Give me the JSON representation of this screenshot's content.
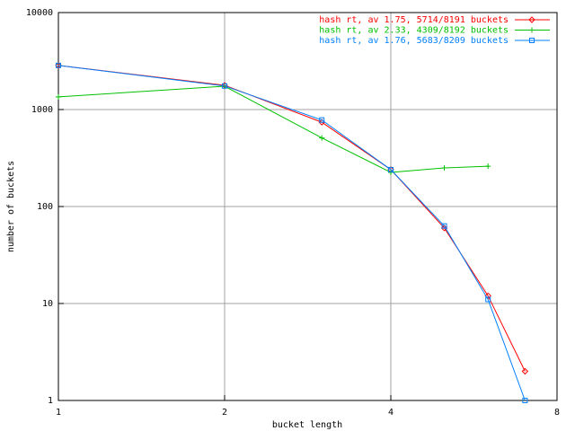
{
  "chart_data": {
    "type": "line",
    "xlabel": "bucket length",
    "ylabel": "number of buckets",
    "x": [
      1,
      2,
      3,
      4,
      5,
      6,
      7
    ],
    "series": [
      {
        "name": "hash rt, av 1.75, 5714/8191 buckets",
        "color": "#ff0000",
        "marker": "diamond",
        "values": [
          2850,
          1780,
          740,
          240,
          60,
          12,
          2
        ]
      },
      {
        "name": "hash rt, av 2.33, 4309/8192 buckets",
        "color": "#00c000",
        "marker": "plus",
        "values": [
          1350,
          1740,
          510,
          225,
          250,
          260,
          null
        ]
      },
      {
        "name": "hash rt, av 1.76, 5683/8209 buckets",
        "color": "#0080ff",
        "marker": "square",
        "values": [
          2850,
          1750,
          780,
          240,
          63,
          11,
          1
        ]
      }
    ],
    "xlim": [
      1,
      8
    ],
    "xticks": [
      1,
      2,
      4,
      8
    ],
    "xlog": true,
    "ylim": [
      1,
      10000
    ],
    "yticks": [
      1,
      10,
      100,
      1000,
      10000
    ],
    "ylog": true,
    "grid": true,
    "legend": "top-right"
  }
}
